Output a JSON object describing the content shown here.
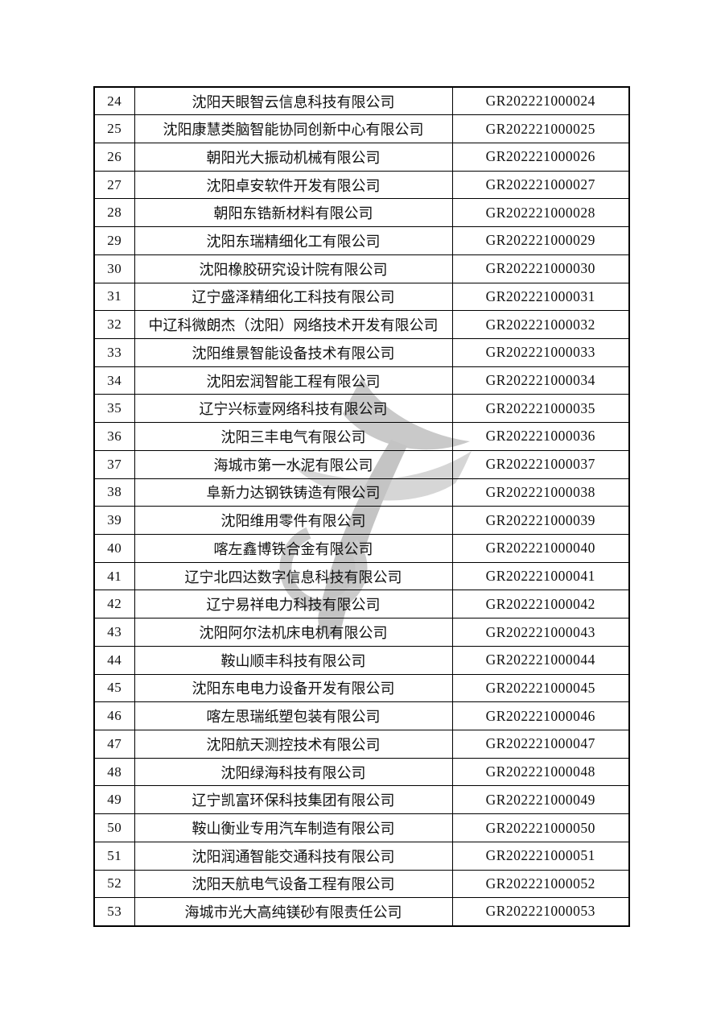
{
  "page": {
    "background": "#ffffff",
    "text_color": "#111111",
    "border_color": "#000000"
  },
  "watermark": {
    "icon": "leaf-swoosh-logo",
    "color_blade_top": "#c9c9c9",
    "color_blade_mid": "#d6d6d6",
    "color_stem": "#c4c4c4",
    "color_ring": "#cbcbcb"
  },
  "table": {
    "rows": [
      {
        "num": "24",
        "company": "沈阳天眼智云信息科技有限公司",
        "code": "GR202221000024"
      },
      {
        "num": "25",
        "company": "沈阳康慧类脑智能协同创新中心有限公司",
        "code": "GR202221000025"
      },
      {
        "num": "26",
        "company": "朝阳光大振动机械有限公司",
        "code": "GR202221000026"
      },
      {
        "num": "27",
        "company": "沈阳卓安软件开发有限公司",
        "code": "GR202221000027"
      },
      {
        "num": "28",
        "company": "朝阳东锆新材料有限公司",
        "code": "GR202221000028"
      },
      {
        "num": "29",
        "company": "沈阳东瑞精细化工有限公司",
        "code": "GR202221000029"
      },
      {
        "num": "30",
        "company": "沈阳橡胶研究设计院有限公司",
        "code": "GR202221000030"
      },
      {
        "num": "31",
        "company": "辽宁盛泽精细化工科技有限公司",
        "code": "GR202221000031"
      },
      {
        "num": "32",
        "company": "中辽科微朗杰（沈阳）网络技术开发有限公司",
        "code": "GR202221000032"
      },
      {
        "num": "33",
        "company": "沈阳维景智能设备技术有限公司",
        "code": "GR202221000033"
      },
      {
        "num": "34",
        "company": "沈阳宏润智能工程有限公司",
        "code": "GR202221000034"
      },
      {
        "num": "35",
        "company": "辽宁兴标壹网络科技有限公司",
        "code": "GR202221000035"
      },
      {
        "num": "36",
        "company": "沈阳三丰电气有限公司",
        "code": "GR202221000036"
      },
      {
        "num": "37",
        "company": "海城市第一水泥有限公司",
        "code": "GR202221000037"
      },
      {
        "num": "38",
        "company": "阜新力达钢铁铸造有限公司",
        "code": "GR202221000038"
      },
      {
        "num": "39",
        "company": "沈阳维用零件有限公司",
        "code": "GR202221000039"
      },
      {
        "num": "40",
        "company": "喀左鑫博铁合金有限公司",
        "code": "GR202221000040"
      },
      {
        "num": "41",
        "company": "辽宁北四达数字信息科技有限公司",
        "code": "GR202221000041"
      },
      {
        "num": "42",
        "company": "辽宁易祥电力科技有限公司",
        "code": "GR202221000042"
      },
      {
        "num": "43",
        "company": "沈阳阿尔法机床电机有限公司",
        "code": "GR202221000043"
      },
      {
        "num": "44",
        "company": "鞍山顺丰科技有限公司",
        "code": "GR202221000044"
      },
      {
        "num": "45",
        "company": "沈阳东电电力设备开发有限公司",
        "code": "GR202221000045"
      },
      {
        "num": "46",
        "company": "喀左思瑞纸塑包装有限公司",
        "code": "GR202221000046"
      },
      {
        "num": "47",
        "company": "沈阳航天测控技术有限公司",
        "code": "GR202221000047"
      },
      {
        "num": "48",
        "company": "沈阳绿海科技有限公司",
        "code": "GR202221000048"
      },
      {
        "num": "49",
        "company": "辽宁凯富环保科技集团有限公司",
        "code": "GR202221000049"
      },
      {
        "num": "50",
        "company": "鞍山衡业专用汽车制造有限公司",
        "code": "GR202221000050"
      },
      {
        "num": "51",
        "company": "沈阳润通智能交通科技有限公司",
        "code": "GR202221000051"
      },
      {
        "num": "52",
        "company": "沈阳天航电气设备工程有限公司",
        "code": "GR202221000052"
      },
      {
        "num": "53",
        "company": "海城市光大高纯镁砂有限责任公司",
        "code": "GR202221000053"
      }
    ]
  }
}
